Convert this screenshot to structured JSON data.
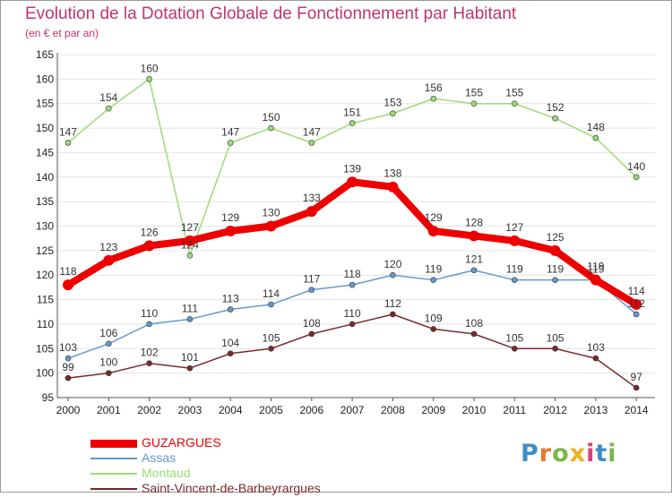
{
  "header": {
    "title": "Evolution de la Dotation Globale de Fonctionnement par Habitant",
    "subtitle": "(en € et par an)"
  },
  "colors": {
    "title": "#c0346f",
    "axis": "#555555",
    "grid": "#e4e4e4"
  },
  "logo": {
    "letters": [
      "P",
      "r",
      "o",
      "x",
      "i",
      "t",
      "i"
    ],
    "colors": [
      "#3d8ec7",
      "#e5792b",
      "#7ab648",
      "#f0b020",
      "#d9407c",
      "#3d8ec7",
      "#7ab648"
    ]
  },
  "chart_data": {
    "type": "line",
    "title": "Evolution de la Dotation Globale de Fonctionnement par Habitant",
    "subtitle": "(en € et par an)",
    "x": [
      "2000",
      "2001",
      "2002",
      "2003",
      "2004",
      "2005",
      "2006",
      "2007",
      "2008",
      "2009",
      "2010",
      "2011",
      "2012",
      "2013",
      "2014"
    ],
    "ylim": [
      95,
      165
    ],
    "yticks": [
      95,
      100,
      105,
      110,
      115,
      120,
      125,
      130,
      135,
      140,
      145,
      150,
      155,
      160,
      165
    ],
    "grid": true,
    "legend_position": "bottom-left",
    "series": [
      {
        "name": "GUZARGUES",
        "color": "#ee0000",
        "width": 8,
        "values": [
          118,
          123,
          126,
          127,
          129,
          130,
          133,
          139,
          138,
          129,
          128,
          127,
          125,
          119,
          114
        ]
      },
      {
        "name": "Assas",
        "color": "#6699cc",
        "width": 1.5,
        "values": [
          103,
          106,
          110,
          111,
          113,
          114,
          117,
          118,
          120,
          119,
          121,
          119,
          119,
          119,
          112
        ]
      },
      {
        "name": "Montaud",
        "color": "#99dd77",
        "width": 1.5,
        "values": [
          147,
          154,
          160,
          124,
          147,
          150,
          147,
          151,
          153,
          156,
          155,
          155,
          152,
          148,
          140
        ]
      },
      {
        "name": "Saint-Vincent-de-Barbeyrargues",
        "color": "#7a2a2a",
        "width": 1.5,
        "values": [
          99,
          100,
          102,
          101,
          104,
          105,
          108,
          110,
          112,
          109,
          108,
          105,
          105,
          103,
          97
        ]
      }
    ]
  }
}
